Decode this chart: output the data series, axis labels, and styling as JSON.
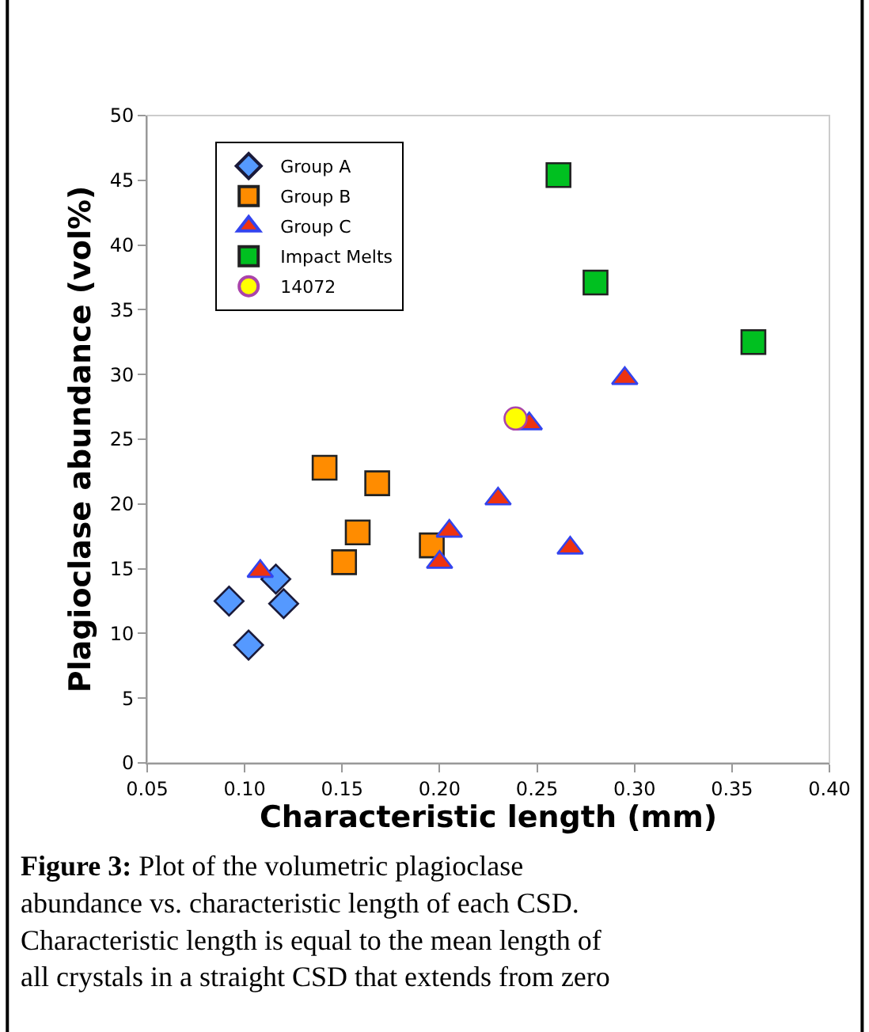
{
  "chart_data": {
    "type": "scatter",
    "xlabel": "Characteristic length (mm)",
    "ylabel": "Plagioclase abundance (vol%)",
    "xlim": [
      0.05,
      0.4
    ],
    "xticks": [
      {
        "value": 0.05,
        "label": "0.05"
      },
      {
        "value": 0.1,
        "label": "0.10"
      },
      {
        "value": 0.15,
        "label": "0.15"
      },
      {
        "value": 0.2,
        "label": "0.20"
      },
      {
        "value": 0.25,
        "label": "0.25"
      },
      {
        "value": 0.3,
        "label": "0.30"
      },
      {
        "value": 0.35,
        "label": "0.35"
      },
      {
        "value": 0.4,
        "label": "0.40"
      }
    ],
    "ylim": [
      0,
      50
    ],
    "yticks": [
      0,
      5,
      10,
      15,
      20,
      25,
      30,
      35,
      40,
      45,
      50
    ],
    "grid": false,
    "legend": "top left",
    "series": [
      {
        "name": "Group A",
        "color": "#5599ff",
        "marker": "diamond",
        "x": [
          0.092,
          0.102,
          0.116,
          0.12
        ],
        "values": [
          12.5,
          9.1,
          14.2,
          12.3
        ]
      },
      {
        "name": "Group B",
        "color": "#ff8c00",
        "marker": "square",
        "x": [
          0.141,
          0.168,
          0.158,
          0.151,
          0.196
        ],
        "values": [
          22.8,
          21.6,
          17.8,
          15.5,
          16.8
        ]
      },
      {
        "name": "Group C",
        "color": "#ee3311",
        "marker": "triangle",
        "x": [
          0.108,
          0.205,
          0.2,
          0.23,
          0.246,
          0.267,
          0.295
        ],
        "values": [
          14.8,
          17.9,
          15.5,
          20.4,
          26.2,
          16.6,
          29.7
        ]
      },
      {
        "name": "Impact Melts",
        "color": "#00c020",
        "marker": "square",
        "x": [
          0.261,
          0.28,
          0.361
        ],
        "values": [
          45.4,
          37.1,
          32.5
        ]
      },
      {
        "name": "14072",
        "color": "#ffff00",
        "marker": "circle",
        "x": [
          0.239
        ],
        "values": [
          26.6
        ]
      }
    ],
    "annotations": [
      "Figure 3:",
      "Plot of the volumetric plagioclase abundance vs. characteristic length of each CSD. Characteristic length is equal to the mean length of all crystals in a straight CSD that extends from zero"
    ]
  }
}
